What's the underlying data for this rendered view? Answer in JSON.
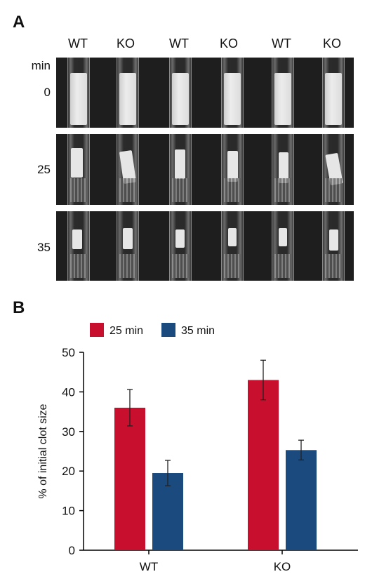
{
  "panel_a": {
    "letter": "A",
    "column_labels": [
      "WT",
      "KO",
      "WT",
      "KO",
      "WT",
      "KO"
    ],
    "unit_label": "min",
    "time_labels": [
      "0",
      "25",
      "35"
    ]
  },
  "panel_b": {
    "letter": "B"
  },
  "colors": {
    "series_25": "#c8102e",
    "series_35": "#1a4a7e"
  },
  "chart_data": {
    "type": "bar",
    "categories": [
      "WT",
      "KO"
    ],
    "series": [
      {
        "name": "25 min",
        "values": [
          36,
          43
        ],
        "error": [
          4.6,
          5
        ]
      },
      {
        "name": "35 min",
        "values": [
          19.5,
          25.3
        ],
        "error": [
          3.2,
          2.5
        ]
      }
    ],
    "ylabel": "% of initial clot size",
    "xlabel": "",
    "ylim": [
      0,
      50
    ],
    "yticks": [
      0,
      10,
      20,
      30,
      40,
      50
    ],
    "legend": "top"
  }
}
